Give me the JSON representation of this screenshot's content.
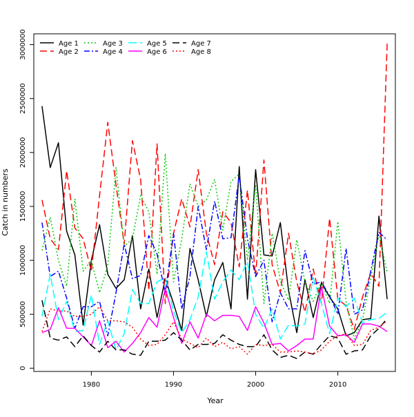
{
  "chart_data": {
    "type": "line",
    "title": "",
    "xlabel": "Year",
    "ylabel": "Catch in numbers",
    "xlim": [
      1973,
      2017
    ],
    "ylim": [
      -30000,
      3100000
    ],
    "xticks": [
      1980,
      1990,
      2000,
      2010
    ],
    "yticks": [
      0,
      500000,
      1000000,
      1500000,
      2000000,
      2500000,
      3000000
    ],
    "legend_position": "top-left",
    "x": [
      1974,
      1975,
      1976,
      1977,
      1978,
      1979,
      1980,
      1981,
      1982,
      1983,
      1984,
      1985,
      1986,
      1987,
      1988,
      1989,
      1990,
      1991,
      1992,
      1993,
      1994,
      1995,
      1996,
      1997,
      1998,
      1999,
      2000,
      2001,
      2002,
      2003,
      2004,
      2005,
      2006,
      2007,
      2008,
      2009,
      2010,
      2011,
      2012,
      2013,
      2014,
      2015,
      2016
    ],
    "series": [
      {
        "name": "Age 1",
        "color": "#000000",
        "dash": "solid",
        "values": [
          2430000,
          1860000,
          2090000,
          1270000,
          1050000,
          400000,
          1000000,
          1330000,
          870000,
          740000,
          820000,
          1230000,
          550000,
          920000,
          470000,
          830000,
          600000,
          350000,
          1110000,
          820000,
          480000,
          820000,
          980000,
          550000,
          1870000,
          640000,
          1840000,
          1050000,
          1040000,
          1350000,
          720000,
          330000,
          820000,
          470000,
          790000,
          660000,
          550000,
          300000,
          330000,
          450000,
          460000,
          1410000,
          640000
        ]
      },
      {
        "name": "Age 2",
        "color": "#ff0000",
        "dash": "10,5",
        "values": [
          1560000,
          1200000,
          1100000,
          1830000,
          1300000,
          1200000,
          900000,
          1600000,
          2280000,
          1700000,
          1150000,
          2110000,
          1750000,
          720000,
          2080000,
          600000,
          1250000,
          1570000,
          1310000,
          1840000,
          1250000,
          960000,
          1450000,
          1350000,
          940000,
          1650000,
          850000,
          1930000,
          960000,
          700000,
          1250000,
          800000,
          520000,
          920000,
          600000,
          1390000,
          640000,
          580000,
          360000,
          660000,
          880000,
          760000,
          3010000
        ]
      },
      {
        "name": "Age 3",
        "color": "#00cc00",
        "dash": "2,3",
        "values": [
          1090000,
          1400000,
          1000000,
          760000,
          1570000,
          900000,
          1000000,
          700000,
          950000,
          1860000,
          1130000,
          1200000,
          1600000,
          1450000,
          870000,
          1990000,
          800000,
          1200000,
          1710000,
          1500000,
          1560000,
          1750000,
          1280000,
          1730000,
          1800000,
          1000000,
          1700000,
          600000,
          1250000,
          810000,
          630000,
          1190000,
          800000,
          620000,
          800000,
          600000,
          1360000,
          620000,
          270000,
          450000,
          840000,
          1240000,
          890000
        ]
      },
      {
        "name": "Age 4",
        "color": "#0000ff",
        "dash": "8,3,2,3",
        "values": [
          1350000,
          850000,
          900000,
          650000,
          370000,
          570000,
          570000,
          620000,
          300000,
          700000,
          1150000,
          830000,
          860000,
          1230000,
          1060000,
          700000,
          1250000,
          550000,
          850000,
          1500000,
          1100000,
          1550000,
          1200000,
          1210000,
          1790000,
          1200000,
          850000,
          1000000,
          430000,
          700000,
          550000,
          550000,
          1090000,
          780000,
          800000,
          670000,
          500000,
          1110000,
          500000,
          540000,
          900000,
          1260000,
          1190000
        ]
      },
      {
        "name": "Age 5",
        "color": "#00ffff",
        "dash": "12,5",
        "values": [
          480000,
          870000,
          450000,
          620000,
          340000,
          350000,
          680000,
          220000,
          440000,
          170000,
          320000,
          730000,
          600000,
          600000,
          800000,
          840000,
          530000,
          330000,
          450000,
          660000,
          1080000,
          640000,
          800000,
          910000,
          820000,
          990000,
          500000,
          370000,
          550000,
          270000,
          400000,
          390000,
          410000,
          840000,
          600000,
          320000,
          650000,
          570000,
          650000,
          420000,
          450000,
          460000,
          520000
        ]
      },
      {
        "name": "Age 6",
        "color": "#ff00ff",
        "dash": "solid",
        "values": [
          330000,
          360000,
          560000,
          370000,
          370000,
          290000,
          210000,
          440000,
          190000,
          250000,
          150000,
          230000,
          330000,
          470000,
          380000,
          740000,
          470000,
          230000,
          430000,
          280000,
          500000,
          440000,
          490000,
          490000,
          480000,
          350000,
          570000,
          420000,
          220000,
          230000,
          160000,
          210000,
          270000,
          270000,
          760000,
          390000,
          300000,
          310000,
          240000,
          410000,
          410000,
          390000,
          340000
        ]
      },
      {
        "name": "Age 7",
        "color": "#000000",
        "dash": "10,5",
        "values": [
          630000,
          280000,
          260000,
          290000,
          200000,
          300000,
          210000,
          150000,
          250000,
          170000,
          170000,
          130000,
          120000,
          250000,
          250000,
          260000,
          330000,
          260000,
          170000,
          220000,
          220000,
          230000,
          310000,
          260000,
          220000,
          200000,
          200000,
          310000,
          170000,
          100000,
          120000,
          90000,
          150000,
          130000,
          220000,
          300000,
          280000,
          130000,
          160000,
          170000,
          300000,
          370000,
          460000
        ]
      },
      {
        "name": "Age 8",
        "color": "#ff0000",
        "dash": "2,3",
        "values": [
          340000,
          550000,
          530000,
          530000,
          480000,
          480000,
          500000,
          570000,
          440000,
          440000,
          430000,
          380000,
          270000,
          210000,
          220000,
          310000,
          430000,
          270000,
          230000,
          190000,
          280000,
          200000,
          240000,
          180000,
          200000,
          130000,
          220000,
          210000,
          220000,
          150000,
          150000,
          160000,
          150000,
          130000,
          170000,
          250000,
          300000,
          320000,
          210000,
          220000,
          350000,
          380000,
          440000
        ]
      }
    ]
  }
}
